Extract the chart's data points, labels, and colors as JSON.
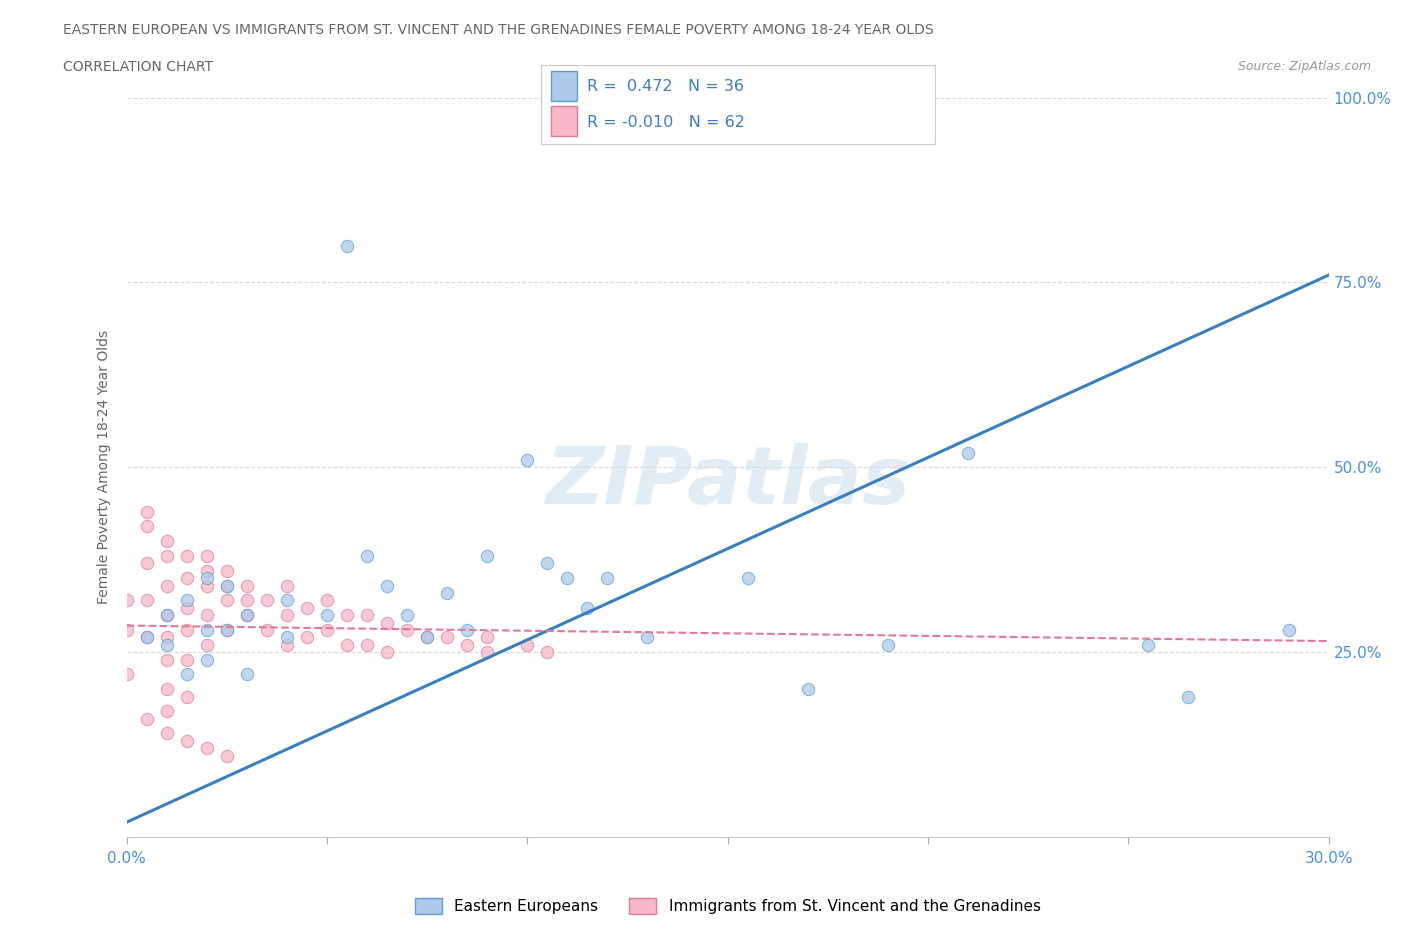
{
  "title_line1": "EASTERN EUROPEAN VS IMMIGRANTS FROM ST. VINCENT AND THE GRENADINES FEMALE POVERTY AMONG 18-24 YEAR OLDS",
  "title_line2": "CORRELATION CHART",
  "source_text": "Source: ZipAtlas.com",
  "ylabel": "Female Poverty Among 18-24 Year Olds",
  "xlim": [
    0.0,
    0.3
  ],
  "ylim": [
    0.0,
    1.0
  ],
  "blue_r": "0.472",
  "blue_n": "36",
  "pink_r": "-0.010",
  "pink_n": "62",
  "blue_color": "#adc8e8",
  "pink_color": "#f7b8c8",
  "blue_edge_color": "#5a9fd4",
  "pink_edge_color": "#e07898",
  "blue_line_color": "#3a7fc1",
  "pink_line_color": "#e07898",
  "legend_label_blue": "Eastern Europeans",
  "legend_label_pink": "Immigrants from St. Vincent and the Grenadines",
  "watermark": "ZIPatlas",
  "blue_trend_x0": 0.0,
  "blue_trend_y0": 0.02,
  "blue_trend_x1": 0.3,
  "blue_trend_y1": 0.76,
  "pink_trend_x0": 0.0,
  "pink_trend_y0": 0.286,
  "pink_trend_x1": 0.3,
  "pink_trend_y1": 0.265,
  "blue_scatter_x": [
    0.005,
    0.01,
    0.01,
    0.015,
    0.015,
    0.02,
    0.02,
    0.02,
    0.025,
    0.025,
    0.03,
    0.03,
    0.04,
    0.04,
    0.05,
    0.055,
    0.06,
    0.065,
    0.07,
    0.075,
    0.08,
    0.085,
    0.09,
    0.1,
    0.105,
    0.11,
    0.115,
    0.12,
    0.13,
    0.155,
    0.17,
    0.19,
    0.21,
    0.255,
    0.265,
    0.29
  ],
  "blue_scatter_y": [
    0.27,
    0.3,
    0.26,
    0.32,
    0.22,
    0.35,
    0.28,
    0.24,
    0.34,
    0.28,
    0.3,
    0.22,
    0.32,
    0.27,
    0.3,
    0.8,
    0.38,
    0.34,
    0.3,
    0.27,
    0.33,
    0.28,
    0.38,
    0.51,
    0.37,
    0.35,
    0.31,
    0.35,
    0.27,
    0.35,
    0.2,
    0.26,
    0.52,
    0.26,
    0.19,
    0.28
  ],
  "pink_scatter_x": [
    0.0,
    0.0,
    0.0,
    0.005,
    0.005,
    0.005,
    0.005,
    0.01,
    0.01,
    0.01,
    0.01,
    0.01,
    0.01,
    0.01,
    0.015,
    0.015,
    0.015,
    0.015,
    0.015,
    0.02,
    0.02,
    0.02,
    0.02,
    0.025,
    0.025,
    0.025,
    0.03,
    0.03,
    0.035,
    0.035,
    0.04,
    0.04,
    0.04,
    0.045,
    0.045,
    0.05,
    0.05,
    0.055,
    0.055,
    0.06,
    0.06,
    0.065,
    0.065,
    0.07,
    0.075,
    0.08,
    0.085,
    0.09,
    0.09,
    0.1,
    0.105,
    0.005,
    0.01,
    0.015,
    0.02,
    0.025,
    0.005,
    0.01,
    0.015,
    0.02,
    0.025,
    0.03
  ],
  "pink_scatter_y": [
    0.32,
    0.28,
    0.22,
    0.42,
    0.37,
    0.32,
    0.27,
    0.38,
    0.34,
    0.3,
    0.27,
    0.24,
    0.2,
    0.17,
    0.35,
    0.31,
    0.28,
    0.24,
    0.19,
    0.38,
    0.34,
    0.3,
    0.26,
    0.36,
    0.32,
    0.28,
    0.34,
    0.3,
    0.32,
    0.28,
    0.34,
    0.3,
    0.26,
    0.31,
    0.27,
    0.32,
    0.28,
    0.3,
    0.26,
    0.3,
    0.26,
    0.29,
    0.25,
    0.28,
    0.27,
    0.27,
    0.26,
    0.27,
    0.25,
    0.26,
    0.25,
    0.16,
    0.14,
    0.13,
    0.12,
    0.11,
    0.44,
    0.4,
    0.38,
    0.36,
    0.34,
    0.32
  ]
}
